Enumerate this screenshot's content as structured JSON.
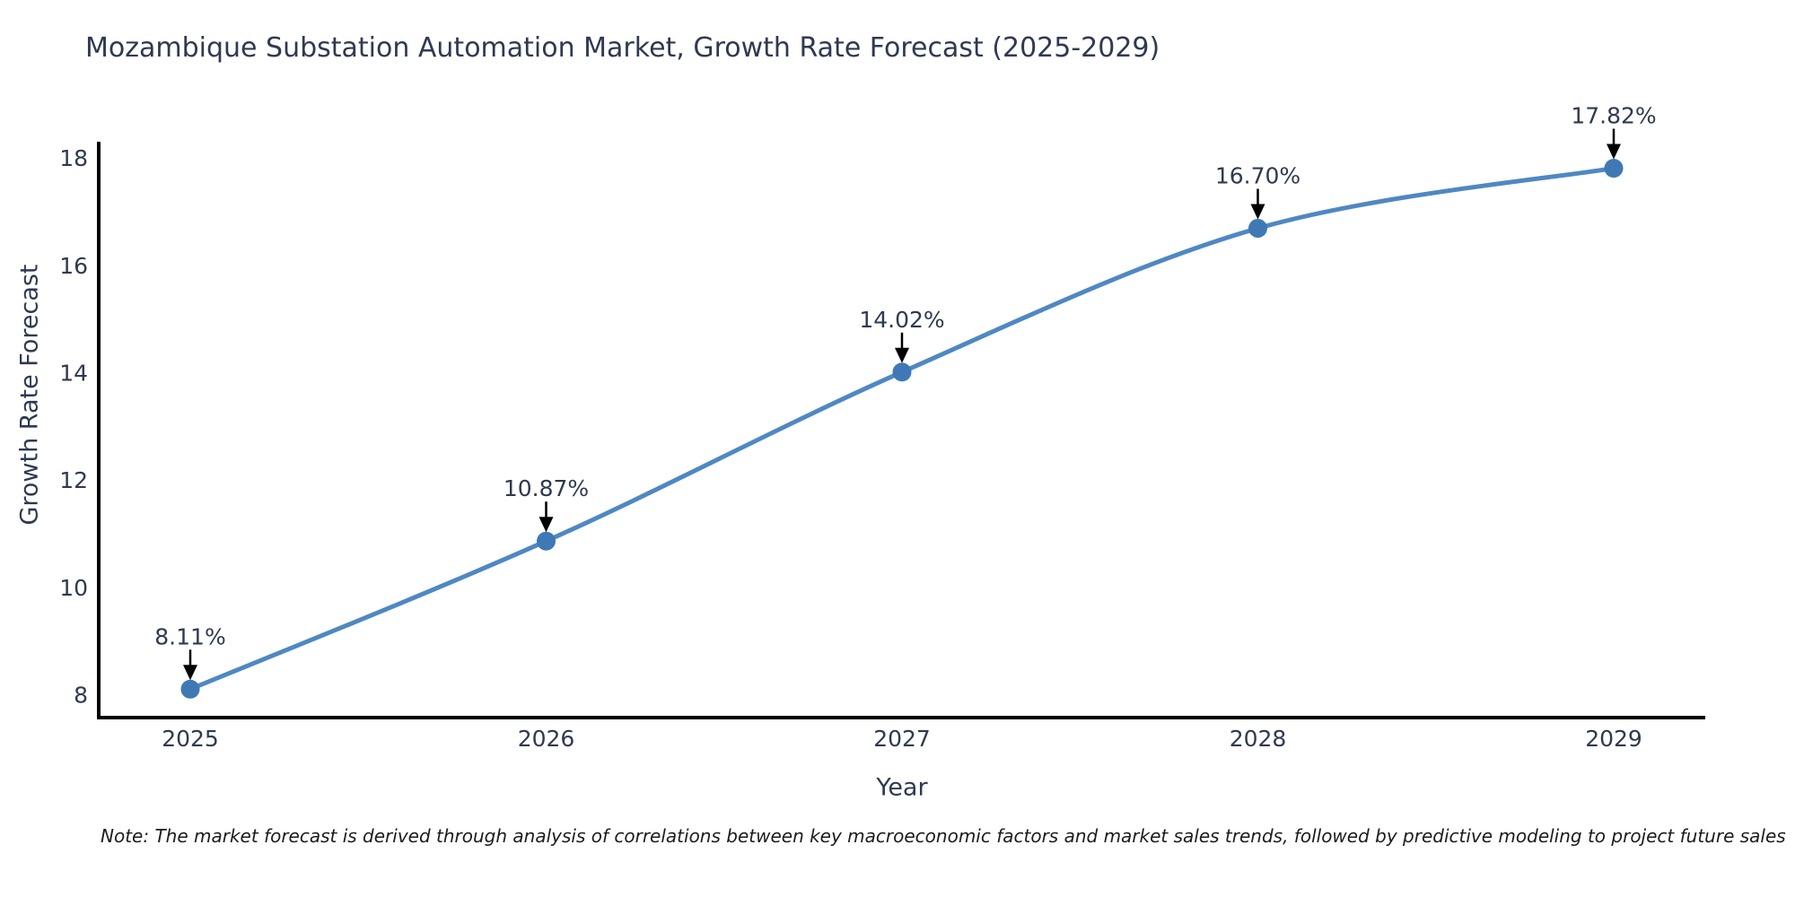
{
  "note": "Note: The market forecast is derived through analysis of correlations between key macroeconomic factors and market sales trends, followed by predictive modeling to project future sales",
  "chart_data": {
    "type": "line",
    "title": "Mozambique Substation Automation Market, Growth Rate Forecast (2025-2029)",
    "xlabel": "Year",
    "ylabel": "Growth Rate Forecast",
    "categories": [
      "2025",
      "2026",
      "2027",
      "2028",
      "2029"
    ],
    "values": [
      8.11,
      10.87,
      14.02,
      16.7,
      17.82
    ],
    "point_labels": [
      "8.11%",
      "10.87%",
      "14.02%",
      "16.70%",
      "17.82%"
    ],
    "yticks": [
      8,
      10,
      12,
      14,
      16,
      18
    ],
    "ylim": [
      7.58,
      18.28
    ],
    "grid": false,
    "legend": "none",
    "line_color": "#4f88c2",
    "marker_color": "#3e79b6",
    "arrow_color": "#000000",
    "text_color": "#2f3a50",
    "axis_color": "#000000"
  }
}
